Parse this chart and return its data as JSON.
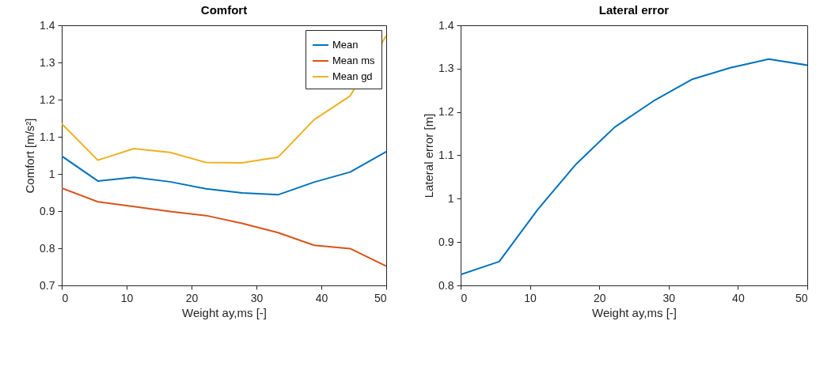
{
  "chart_data": [
    {
      "type": "line",
      "title": "Comfort",
      "xlabel": "Weight ay,ms [-]",
      "ylabel": "Comfort [m/s²]",
      "x": [
        0,
        5.56,
        11.11,
        16.67,
        22.22,
        27.78,
        33.33,
        38.89,
        44.44,
        50
      ],
      "xlim": [
        0,
        50
      ],
      "xticks": [
        0,
        10,
        20,
        30,
        40,
        50
      ],
      "ylim": [
        0.7,
        1.4
      ],
      "yticks": [
        0.7,
        0.8,
        0.9,
        1,
        1.1,
        1.2,
        1.3,
        1.4
      ],
      "grid": false,
      "legend": "top right",
      "series": [
        {
          "name": "Mean",
          "color": "#0072bd",
          "values": [
            1.048,
            0.981,
            0.991,
            0.979,
            0.96,
            0.949,
            0.944,
            0.978,
            1.005,
            1.06
          ]
        },
        {
          "name": "Mean ms",
          "color": "#d95319",
          "values": [
            0.962,
            0.925,
            0.912,
            0.899,
            0.888,
            0.867,
            0.842,
            0.808,
            0.799,
            0.752
          ]
        },
        {
          "name": "Mean gd",
          "color": "#edb120",
          "values": [
            1.135,
            1.037,
            1.068,
            1.058,
            1.031,
            1.03,
            1.045,
            1.146,
            1.21,
            1.372
          ]
        }
      ]
    },
    {
      "type": "line",
      "title": "Lateral error",
      "xlabel": "Weight ay,ms [-]",
      "ylabel": "Lateral error [m]",
      "x": [
        0,
        5.56,
        11.11,
        16.67,
        22.22,
        27.78,
        33.33,
        38.89,
        44.44,
        50
      ],
      "xlim": [
        0,
        50
      ],
      "xticks": [
        0,
        10,
        20,
        30,
        40,
        50
      ],
      "ylim": [
        0.8,
        1.4
      ],
      "yticks": [
        0.8,
        0.9,
        1,
        1.1,
        1.2,
        1.3,
        1.4
      ],
      "grid": false,
      "series": [
        {
          "color": "#0072bd",
          "values": [
            0.825,
            0.855,
            0.975,
            1.08,
            1.165,
            1.225,
            1.275,
            1.302,
            1.322,
            1.308
          ]
        }
      ]
    }
  ]
}
